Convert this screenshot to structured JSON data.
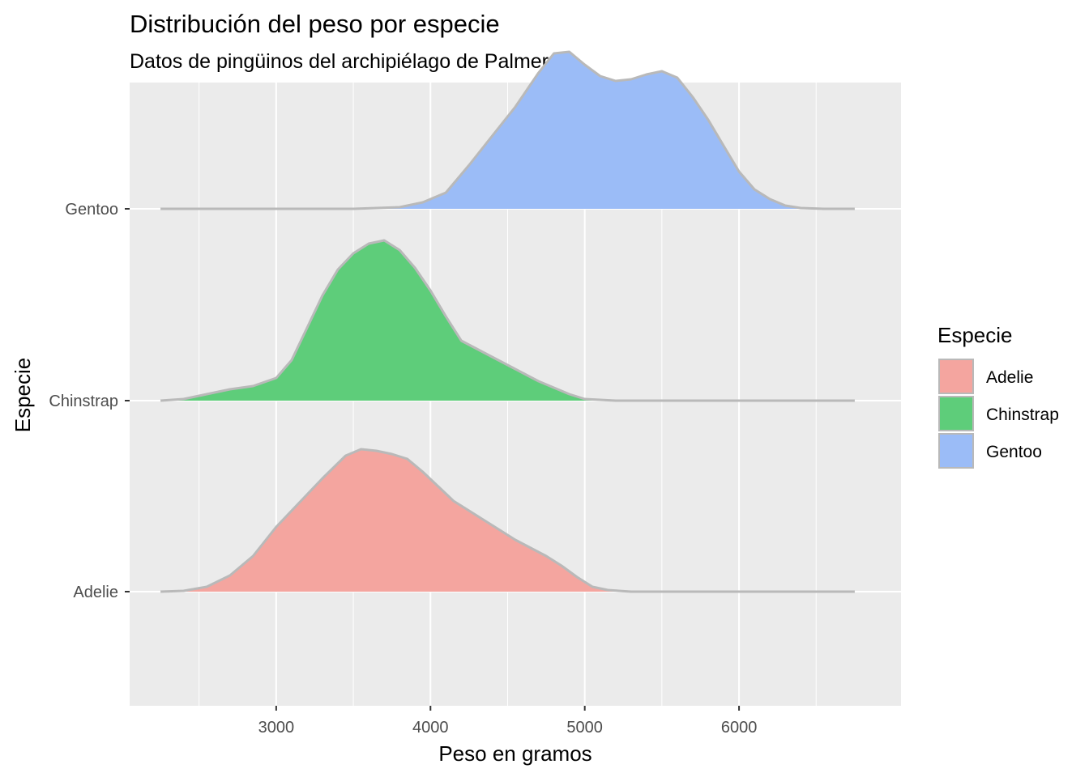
{
  "chart_data": {
    "type": "ridgeline-density",
    "title": "Distribución del peso por especie",
    "subtitle": "Datos de pingüinos del archipiélago de Palmer",
    "xlabel": "Peso en gramos",
    "ylabel": "Especie",
    "xlim": [
      2050,
      7050
    ],
    "x_ticks": [
      3000,
      4000,
      5000,
      6000
    ],
    "x_minor_gridlines": [
      2500,
      3500,
      4500,
      5500,
      6500
    ],
    "categories": [
      "Adelie",
      "Chinstrap",
      "Gentoo"
    ],
    "grid": true,
    "legend": {
      "title": "Especie",
      "position": "right",
      "entries": [
        "Adelie",
        "Chinstrap",
        "Gentoo"
      ]
    },
    "colors": {
      "panel_background": "#ebebeb",
      "gridline": "#ffffff",
      "outline": "#b9b9b9",
      "Adelie": "#f4a59f",
      "Chinstrap": "#5ecd7a",
      "Gentoo": "#9bbcf7"
    },
    "series": [
      {
        "name": "Adelie",
        "x": [
          2250,
          2400,
          2550,
          2700,
          2850,
          3000,
          3150,
          3300,
          3450,
          3550,
          3650,
          3750,
          3850,
          3950,
          4050,
          4150,
          4250,
          4350,
          4450,
          4550,
          4650,
          4750,
          4850,
          4950,
          5050,
          5150,
          5300,
          5500,
          5800,
          6200,
          6750
        ],
        "density": [
          0.0,
          0.005,
          0.03,
          0.1,
          0.22,
          0.4,
          0.55,
          0.7,
          0.84,
          0.88,
          0.87,
          0.85,
          0.82,
          0.74,
          0.65,
          0.56,
          0.5,
          0.44,
          0.38,
          0.32,
          0.27,
          0.22,
          0.16,
          0.09,
          0.03,
          0.01,
          0.0,
          0.0,
          0.0,
          0.0,
          0.0
        ]
      },
      {
        "name": "Chinstrap",
        "x": [
          2250,
          2400,
          2550,
          2700,
          2850,
          3000,
          3100,
          3200,
          3300,
          3400,
          3500,
          3600,
          3700,
          3800,
          3900,
          4000,
          4100,
          4200,
          4300,
          4400,
          4500,
          4600,
          4700,
          4800,
          4900,
          5000,
          5200,
          5500,
          6000,
          6750
        ],
        "density": [
          0.0,
          0.01,
          0.04,
          0.07,
          0.09,
          0.14,
          0.25,
          0.45,
          0.65,
          0.81,
          0.91,
          0.97,
          0.99,
          0.93,
          0.82,
          0.68,
          0.52,
          0.37,
          0.32,
          0.27,
          0.22,
          0.17,
          0.12,
          0.08,
          0.04,
          0.01,
          0.0,
          0.0,
          0.0,
          0.0
        ]
      },
      {
        "name": "Gentoo",
        "x": [
          2250,
          3500,
          3800,
          3950,
          4100,
          4250,
          4400,
          4550,
          4700,
          4800,
          4900,
          5000,
          5100,
          5200,
          5300,
          5400,
          5500,
          5600,
          5700,
          5800,
          5900,
          6000,
          6100,
          6200,
          6300,
          6400,
          6550,
          6750
        ],
        "density": [
          0.0,
          0.0,
          0.01,
          0.04,
          0.1,
          0.27,
          0.45,
          0.63,
          0.84,
          0.96,
          0.97,
          0.89,
          0.82,
          0.79,
          0.8,
          0.83,
          0.85,
          0.81,
          0.69,
          0.55,
          0.39,
          0.23,
          0.12,
          0.06,
          0.02,
          0.005,
          0.0,
          0.0
        ]
      }
    ]
  }
}
